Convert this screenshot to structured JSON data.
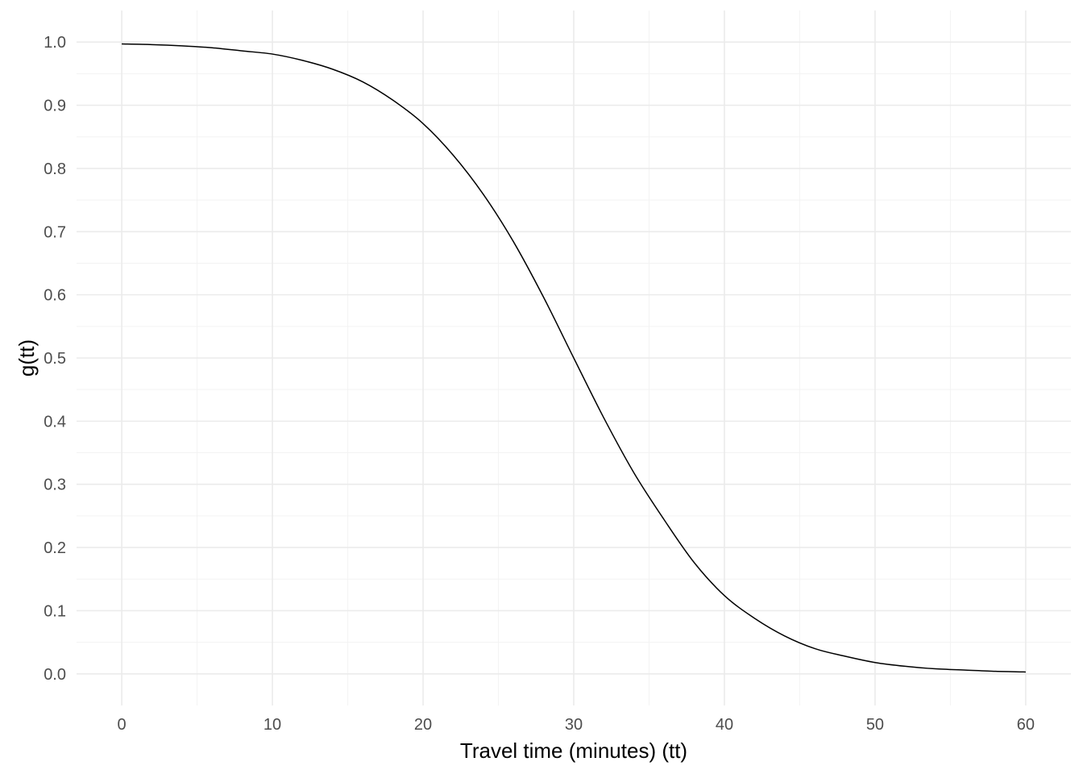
{
  "chart_data": {
    "type": "line",
    "title": "",
    "xlabel": "Travel time (minutes) (tt)",
    "ylabel": "g(tt)",
    "xlim": [
      -3,
      63
    ],
    "ylim": [
      -0.05,
      1.05
    ],
    "x_ticks": [
      0,
      10,
      20,
      30,
      40,
      50,
      60
    ],
    "x_tick_labels": [
      "0",
      "10",
      "20",
      "30",
      "40",
      "50",
      "60"
    ],
    "y_ticks": [
      0.0,
      0.1,
      0.2,
      0.3,
      0.4,
      0.5,
      0.6,
      0.7,
      0.8,
      0.9,
      1.0
    ],
    "y_tick_labels": [
      "0.0",
      "0.1",
      "0.2",
      "0.3",
      "0.4",
      "0.5",
      "0.6",
      "0.7",
      "0.8",
      "0.9",
      "1.0"
    ],
    "x_minor_ticks": [
      5,
      15,
      25,
      35,
      45,
      55
    ],
    "y_minor_ticks": [
      0.05,
      0.15,
      0.25,
      0.35,
      0.45,
      0.55,
      0.65,
      0.75,
      0.85,
      0.95
    ],
    "grid": true,
    "series": [
      {
        "name": "g(tt)",
        "x": [
          0,
          2,
          4,
          6,
          8,
          10,
          12,
          14,
          16,
          18,
          20,
          22,
          24,
          26,
          28,
          30,
          32,
          34,
          36,
          38,
          40,
          42,
          44,
          46,
          48,
          50,
          52,
          54,
          56,
          58,
          60
        ],
        "y": [
          0.997,
          0.996,
          0.994,
          0.991,
          0.986,
          0.981,
          0.971,
          0.957,
          0.937,
          0.908,
          0.871,
          0.821,
          0.759,
          0.684,
          0.596,
          0.5,
          0.405,
          0.318,
          0.244,
          0.176,
          0.124,
          0.088,
          0.06,
          0.04,
          0.028,
          0.018,
          0.012,
          0.008,
          0.006,
          0.004,
          0.003
        ]
      }
    ]
  }
}
